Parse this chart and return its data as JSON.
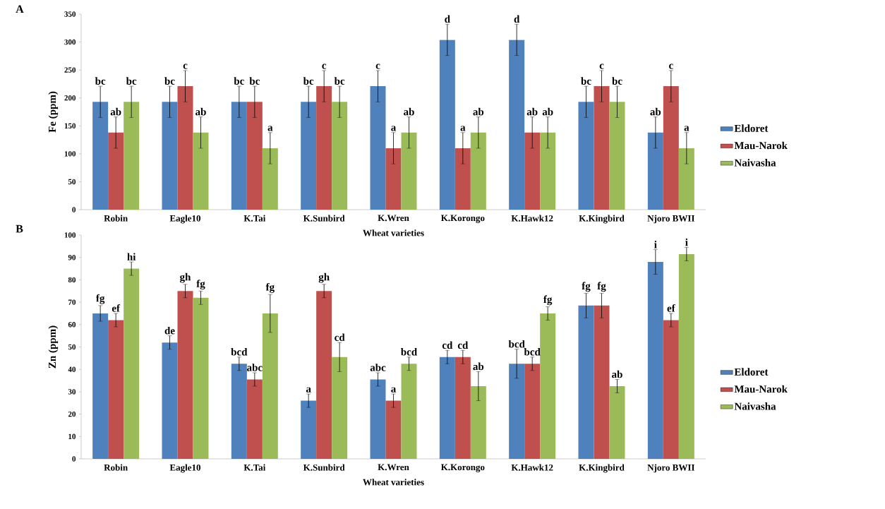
{
  "chart_data": [
    {
      "type": "bar",
      "title": "A",
      "xlabel": "Wheat varieties",
      "ylabel": "Fe (ppm)",
      "categories": [
        "Robin",
        "Eagle10",
        "K.Tai",
        "K.Sunbird",
        "K.Wren",
        "K.Korongo",
        "K.Hawk12",
        "K.Kingbird",
        "Njoro BWII"
      ],
      "ylim": [
        0,
        350
      ],
      "yticks": [
        0,
        50,
        100,
        150,
        200,
        250,
        300,
        350
      ],
      "grid": false,
      "legend": "right",
      "series": [
        {
          "name": "Eldoret",
          "color": "#4f81bd",
          "values": [
            193,
            193,
            193,
            193,
            221,
            304,
            304,
            193,
            138
          ],
          "errors": [
            28,
            28,
            28,
            28,
            28,
            28,
            28,
            28,
            28
          ],
          "value_labels": [
            "bc",
            "bc",
            "bc",
            "bc",
            "c",
            "d",
            "d",
            "bc",
            "ab"
          ]
        },
        {
          "name": "Mau-Narok",
          "color": "#c0504d",
          "values": [
            138,
            221,
            193,
            221,
            110,
            110,
            138,
            221,
            221
          ],
          "errors": [
            28,
            28,
            28,
            28,
            28,
            28,
            28,
            28,
            28
          ],
          "value_labels": [
            "ab",
            "c",
            "bc",
            "c",
            "a",
            "a",
            "ab",
            "c",
            "c"
          ]
        },
        {
          "name": "Naivasha",
          "color": "#9bbb59",
          "values": [
            193,
            138,
            110,
            193,
            138,
            138,
            138,
            193,
            110
          ],
          "errors": [
            28,
            28,
            28,
            28,
            28,
            28,
            28,
            28,
            28
          ],
          "value_labels": [
            "bc",
            "ab",
            "a",
            "bc",
            "ab",
            "ab",
            "ab",
            "bc",
            "a"
          ]
        }
      ]
    },
    {
      "type": "bar",
      "title": "B",
      "xlabel": "Wheat varieties",
      "ylabel": "Zn (ppm)",
      "categories": [
        "Robin",
        "Eagle10",
        "K.Tai",
        "K.Sunbird",
        "K.Wren",
        "K.Korongo",
        "K.Hawk12",
        "K.Kingbird",
        "Njoro BWII"
      ],
      "ylim": [
        0,
        100
      ],
      "yticks": [
        0,
        10,
        20,
        30,
        40,
        50,
        60,
        70,
        80,
        90,
        100
      ],
      "grid": false,
      "legend": "right",
      "series": [
        {
          "name": "Eldoret",
          "color": "#4f81bd",
          "values": [
            65,
            52,
            42.5,
            26,
            35.5,
            45.5,
            42.5,
            68.5,
            88
          ],
          "errors": [
            3.5,
            3,
            3,
            3,
            3,
            3,
            6.5,
            5.5,
            5.5
          ],
          "value_labels": [
            "fg",
            "de",
            "bcd",
            "a",
            "abc",
            "cd",
            "bcd",
            "fg",
            "i"
          ]
        },
        {
          "name": "Mau-Narok",
          "color": "#c0504d",
          "values": [
            62,
            75,
            35.5,
            75,
            26,
            45.5,
            42.5,
            68.5,
            62
          ],
          "errors": [
            3,
            3,
            3,
            3,
            3,
            3,
            3,
            5.5,
            3
          ],
          "value_labels": [
            "ef",
            "gh",
            "abc",
            "gh",
            "a",
            "cd",
            "bcd",
            "fg",
            "ef"
          ]
        },
        {
          "name": "Naivasha",
          "color": "#9bbb59",
          "values": [
            85,
            72,
            65,
            45.5,
            42.5,
            32.5,
            65,
            32.5,
            91.5
          ],
          "errors": [
            3,
            3,
            8.5,
            6.5,
            3,
            6.5,
            3,
            3,
            3
          ],
          "value_labels": [
            "hi",
            "fg",
            "fg",
            "cd",
            "bcd",
            "ab",
            "fg",
            "ab",
            "i"
          ]
        }
      ]
    }
  ]
}
